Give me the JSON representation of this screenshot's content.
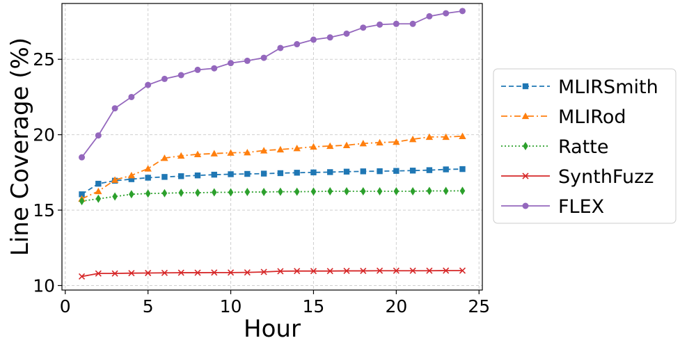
{
  "chart_data": {
    "type": "line",
    "title": "",
    "xlabel": "Hour",
    "ylabel": "Line Coverage (%)",
    "xlim": [
      -0.2,
      25.2
    ],
    "ylim": [
      9.7,
      28.7
    ],
    "xticks": [
      0,
      5,
      10,
      15,
      20,
      25
    ],
    "yticks": [
      10,
      15,
      20,
      25
    ],
    "grid": true,
    "legend_position": "outside-right",
    "x": [
      1,
      2,
      3,
      4,
      5,
      6,
      7,
      8,
      9,
      10,
      11,
      12,
      13,
      14,
      15,
      16,
      17,
      18,
      19,
      20,
      21,
      22,
      23,
      24
    ],
    "series": [
      {
        "name": "MLIRSmith",
        "color": "#1f77b4",
        "linestyle": "dashed",
        "marker": "square",
        "values": [
          16.05,
          16.75,
          16.95,
          17.05,
          17.15,
          17.2,
          17.25,
          17.3,
          17.35,
          17.38,
          17.4,
          17.42,
          17.45,
          17.48,
          17.5,
          17.52,
          17.55,
          17.57,
          17.58,
          17.6,
          17.62,
          17.65,
          17.7,
          17.72
        ]
      },
      {
        "name": "MLIRod",
        "color": "#ff7f0e",
        "linestyle": "dashdot",
        "marker": "triangle",
        "values": [
          15.75,
          16.25,
          17.0,
          17.3,
          17.75,
          18.45,
          18.6,
          18.7,
          18.75,
          18.8,
          18.82,
          18.95,
          19.02,
          19.1,
          19.2,
          19.25,
          19.3,
          19.42,
          19.48,
          19.52,
          19.7,
          19.85,
          19.85,
          19.9
        ]
      },
      {
        "name": "Ratte",
        "color": "#2ca02c",
        "linestyle": "dotted",
        "marker": "diamond",
        "values": [
          15.6,
          15.75,
          15.9,
          16.05,
          16.1,
          16.12,
          16.15,
          16.15,
          16.18,
          16.18,
          16.2,
          16.2,
          16.22,
          16.22,
          16.23,
          16.25,
          16.25,
          16.25,
          16.25,
          16.25,
          16.25,
          16.27,
          16.27,
          16.28
        ]
      },
      {
        "name": "SynthFuzz",
        "color": "#d62728",
        "linestyle": "solid",
        "marker": "x",
        "values": [
          10.6,
          10.8,
          10.8,
          10.82,
          10.83,
          10.84,
          10.85,
          10.85,
          10.86,
          10.86,
          10.87,
          10.9,
          10.95,
          10.96,
          10.96,
          10.96,
          10.97,
          10.97,
          10.98,
          10.98,
          10.98,
          10.98,
          10.99,
          10.99
        ]
      },
      {
        "name": "FLEX",
        "color": "#9467bd",
        "linestyle": "solid",
        "marker": "circle",
        "values": [
          18.5,
          19.95,
          21.75,
          22.5,
          23.3,
          23.7,
          23.95,
          24.3,
          24.4,
          24.75,
          24.9,
          25.1,
          25.75,
          26.0,
          26.3,
          26.45,
          26.7,
          27.1,
          27.3,
          27.35,
          27.35,
          27.85,
          28.05,
          28.2
        ]
      }
    ]
  }
}
